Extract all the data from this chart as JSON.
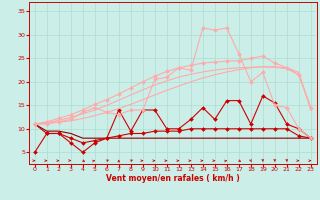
{
  "x": [
    0,
    1,
    2,
    3,
    4,
    5,
    6,
    7,
    8,
    9,
    10,
    11,
    12,
    13,
    14,
    15,
    16,
    17,
    18,
    19,
    20,
    21,
    22,
    23
  ],
  "background_color": "#cceee8",
  "grid_color": "#aaddcc",
  "xlabel": "Vent moyen/en rafales ( km/h )",
  "xlabel_color": "#cc0000",
  "series": [
    {
      "label": "flat_dark",
      "y": [
        11,
        9.5,
        9.5,
        9,
        8,
        8,
        8,
        8,
        8,
        8,
        8,
        8,
        8,
        8,
        8,
        8,
        8,
        8,
        8,
        8,
        8,
        8,
        8,
        8
      ],
      "color": "#880000",
      "marker": null,
      "markersize": 0,
      "linewidth": 0.8,
      "alpha": 1.0
    },
    {
      "label": "jagged_dark1",
      "y": [
        11,
        9,
        9,
        7,
        5,
        7,
        8,
        8.5,
        9,
        9,
        9.5,
        9.5,
        9.5,
        10,
        10,
        10,
        10,
        10,
        10,
        10,
        10,
        10,
        8.5,
        8
      ],
      "color": "#cc0000",
      "marker": "D",
      "markersize": 2.0,
      "linewidth": 0.8,
      "alpha": 1.0
    },
    {
      "label": "jagged_dark2",
      "y": [
        5,
        9,
        9,
        8,
        7,
        7.5,
        8,
        14,
        9.5,
        14,
        14,
        10,
        10,
        12,
        14.5,
        12,
        16,
        16,
        11,
        17,
        15.5,
        11,
        10,
        8
      ],
      "color": "#cc0000",
      "marker": "D",
      "markersize": 2.0,
      "linewidth": 0.8,
      "alpha": 1.0
    },
    {
      "label": "smooth_pink1",
      "y": [
        11,
        11.2,
        11.4,
        11.7,
        12.2,
        12.8,
        13.5,
        14.3,
        15.2,
        16.2,
        17.2,
        18.2,
        19.1,
        20,
        20.8,
        21.5,
        22.1,
        22.6,
        23,
        23.2,
        23.2,
        23,
        22,
        14
      ],
      "color": "#ffaaaa",
      "marker": null,
      "markersize": 0,
      "linewidth": 0.8,
      "alpha": 1.0
    },
    {
      "label": "smooth_pink2",
      "y": [
        11,
        11.3,
        11.8,
        12.4,
        13.2,
        14.0,
        15.0,
        16.1,
        17.2,
        18.3,
        19.3,
        20.2,
        21.0,
        21.6,
        22.1,
        22.5,
        22.8,
        23.0,
        23.1,
        23.2,
        23.1,
        22.8,
        21.5,
        14.5
      ],
      "color": "#ffaaaa",
      "marker": null,
      "markersize": 0,
      "linewidth": 0.8,
      "alpha": 1.0
    },
    {
      "label": "smooth_pink3",
      "y": [
        11,
        11.5,
        12.2,
        13.0,
        14.0,
        15.2,
        16.2,
        17.4,
        18.7,
        20.0,
        21.2,
        22.2,
        23.0,
        23.5,
        24.0,
        24.2,
        24.4,
        24.5,
        25.0,
        25.5,
        24.0,
        23.0,
        21.5,
        14.5
      ],
      "color": "#ffaaaa",
      "marker": "D",
      "markersize": 2.0,
      "linewidth": 0.8,
      "alpha": 1.0
    },
    {
      "label": "jagged_pink",
      "y": [
        11,
        11,
        11.5,
        12,
        13.5,
        14.5,
        13.5,
        13,
        14,
        14,
        20.5,
        21,
        23,
        22.5,
        31.5,
        31,
        31.5,
        26,
        20,
        22,
        15,
        14.5,
        10,
        8
      ],
      "color": "#ffaaaa",
      "marker": "D",
      "markersize": 2.0,
      "linewidth": 0.8,
      "alpha": 1.0
    }
  ],
  "wind_arrows": {
    "y": 3.2,
    "angles_deg": [
      0,
      0,
      0,
      -20,
      -40,
      20,
      50,
      90,
      50,
      0,
      0,
      0,
      0,
      0,
      0,
      0,
      20,
      -40,
      -80,
      -90,
      -90,
      -90,
      0,
      0
    ]
  },
  "yticks": [
    5,
    10,
    15,
    20,
    25,
    30,
    35
  ],
  "xticks": [
    0,
    1,
    2,
    3,
    4,
    5,
    6,
    7,
    8,
    9,
    10,
    11,
    12,
    13,
    14,
    15,
    16,
    17,
    18,
    19,
    20,
    21,
    22,
    23
  ],
  "ylim": [
    2.5,
    37
  ],
  "xlim": [
    -0.5,
    23.5
  ]
}
